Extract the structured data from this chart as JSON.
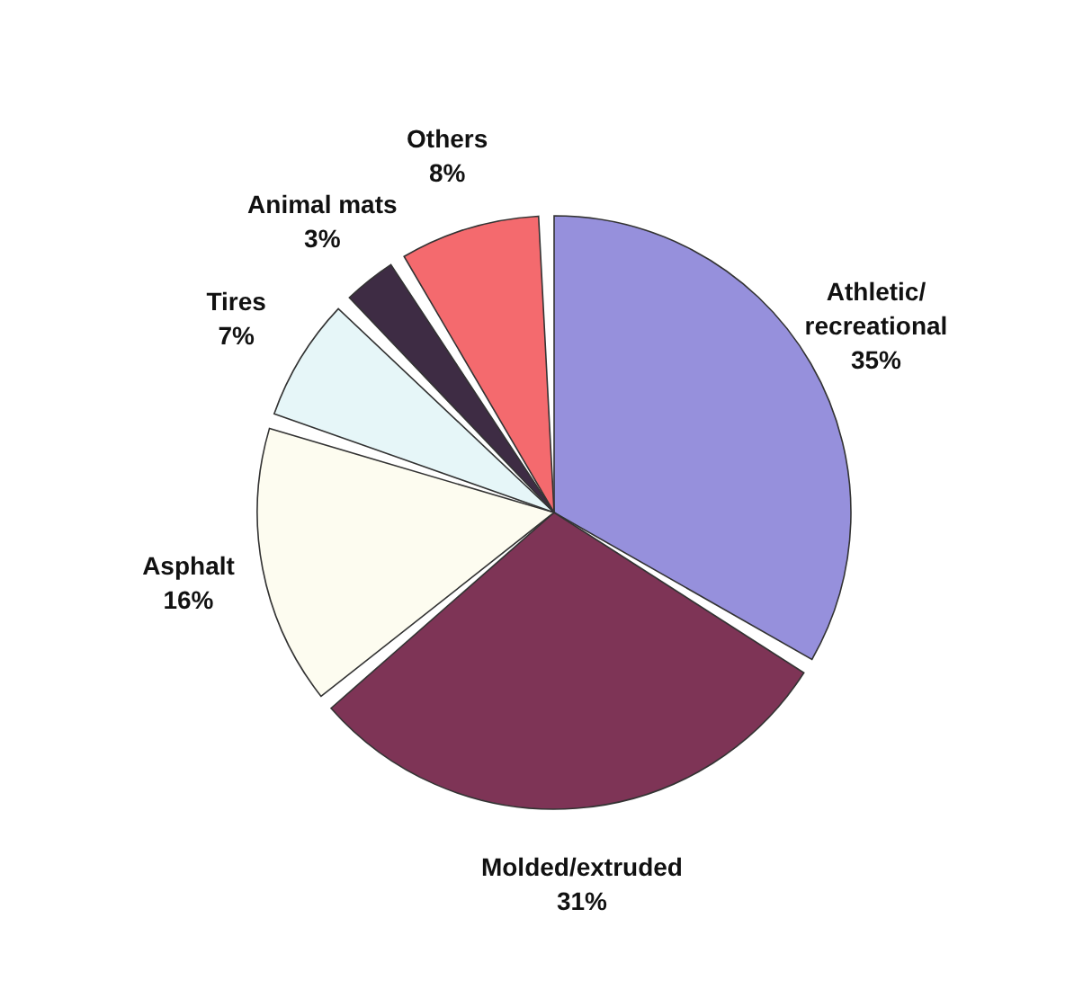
{
  "chart_data": {
    "type": "pie",
    "categories": [
      "Athletic/recreational",
      "Molded/extruded",
      "Asphalt",
      "Tires",
      "Animal mats",
      "Others"
    ],
    "values": [
      35,
      31,
      16,
      7,
      3,
      8
    ],
    "value_labels": [
      "35%",
      "31%",
      "16%",
      "7%",
      "3%",
      "8%"
    ],
    "colors": [
      "#9690dc",
      "#7e3456",
      "#fdfcf0",
      "#e6f6f8",
      "#3e2c44",
      "#f46a6e"
    ],
    "legend": false
  }
}
